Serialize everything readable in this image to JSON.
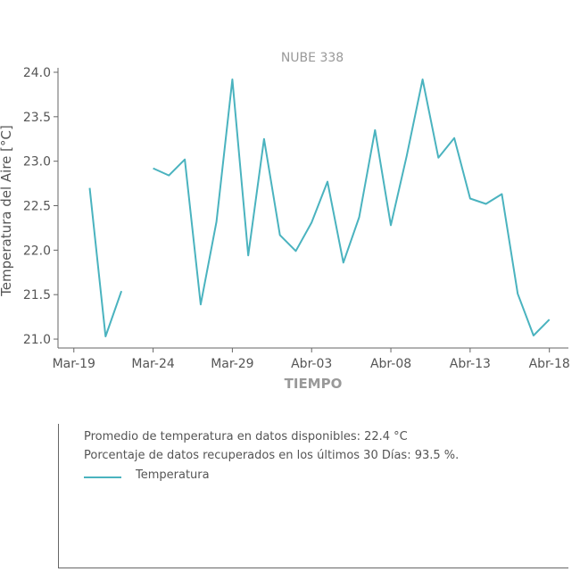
{
  "chart_data": {
    "type": "line",
    "title": "NUBE 338",
    "xlabel": "TIEMPO",
    "ylabel": "Temperatura del Aire [°C]",
    "ylim": [
      20.9,
      24.05
    ],
    "yticks": [
      21.0,
      21.5,
      22.0,
      22.5,
      23.0,
      23.5,
      24.0
    ],
    "ytick_labels": [
      "21.0",
      "21.5",
      "22.0",
      "22.5",
      "23.0",
      "23.5",
      "24.0"
    ],
    "xlim": [
      -1.0,
      31.2
    ],
    "xticks": [
      0,
      5,
      10,
      15,
      20,
      25,
      30
    ],
    "xtick_labels": [
      "Mar-19",
      "Mar-24",
      "Mar-29",
      "Abr-03",
      "Abr-08",
      "Abr-13",
      "Abr-18"
    ],
    "grid": false,
    "color": "#4ab3bf",
    "series": [
      {
        "name": "Temperatura",
        "x": [
          1,
          2,
          3,
          4,
          5,
          6,
          7,
          8,
          9,
          10,
          11,
          12,
          13,
          14,
          15,
          16,
          17,
          18,
          19,
          20,
          21,
          22,
          23,
          24,
          25,
          26,
          27,
          28,
          29,
          30
        ],
        "y": [
          22.7,
          21.03,
          21.54,
          null,
          22.92,
          22.84,
          23.02,
          21.39,
          22.32,
          23.92,
          21.94,
          23.25,
          22.17,
          21.99,
          22.31,
          22.77,
          21.86,
          22.37,
          23.35,
          22.28,
          23.06,
          23.92,
          23.04,
          23.26,
          22.58,
          22.52,
          22.63,
          21.51,
          21.04,
          21.22
        ]
      }
    ]
  },
  "info": {
    "average_text": "Promedio de temperatura en datos disponibles: 22.4 °C",
    "recovered_text": "Porcentaje de datos recuperados en los últimos 30 Días: 93.5 %.",
    "legend_label": "Temperatura"
  }
}
